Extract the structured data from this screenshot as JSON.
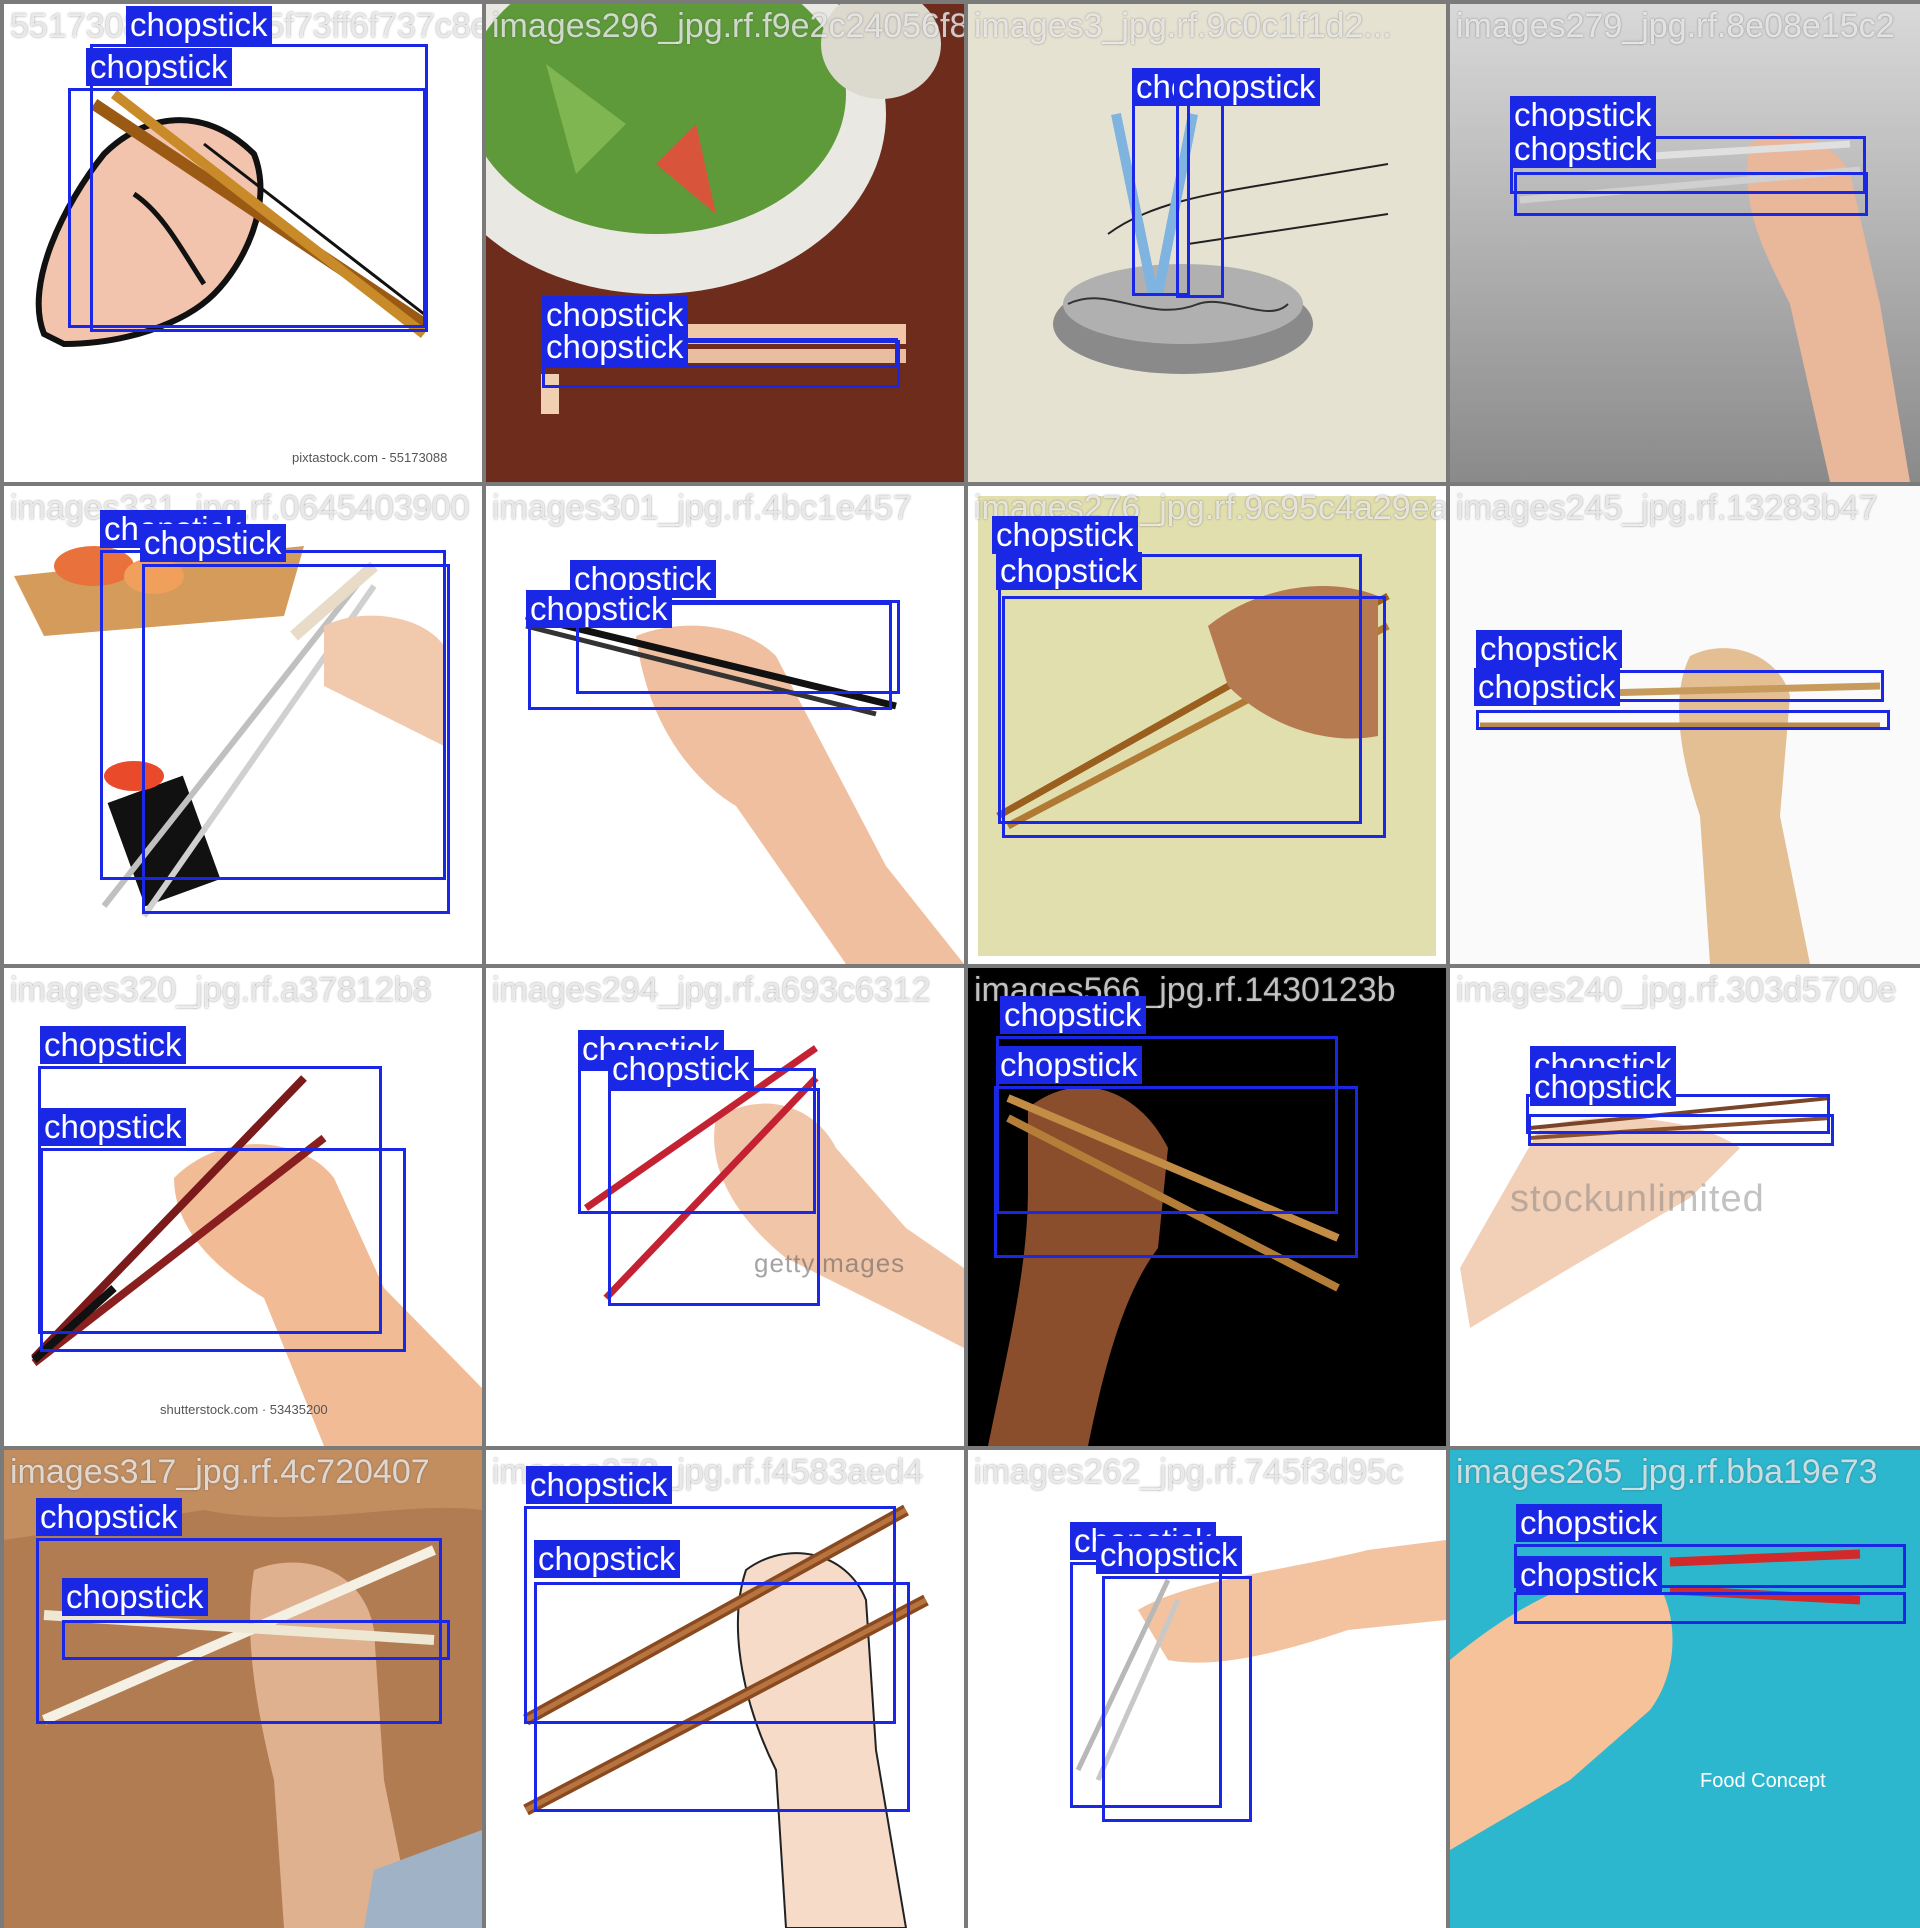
{
  "label": "chopstick",
  "colors": {
    "box": "#1a28e6",
    "label_bg": "#1a28e6",
    "label_fg": "#ffffff",
    "grid_bg": "#7a7a7a"
  },
  "tiles": [
    {
      "filename": "55173088_jpg.rf.5f73ff6f737c8e5aa4d3196e",
      "watermark": "pixtastock.com - 55173088"
    },
    {
      "filename": "images296_jpg.rf.f9e2c24056f8f9b6f76",
      "watermark": ""
    },
    {
      "filename": "images3_jpg.rf.9c0c1f1d2...",
      "watermark": ""
    },
    {
      "filename": "images279_jpg.rf.8e08e15c2",
      "watermark": ""
    },
    {
      "filename": "images331_jpg.rf.0645403900",
      "watermark": ""
    },
    {
      "filename": "images301_jpg.rf.4bc1e457",
      "watermark": ""
    },
    {
      "filename": "images276_jpg.rf.9c95c4a29eaf0",
      "watermark": ""
    },
    {
      "filename": "images245_jpg.rf.13283b47",
      "watermark": ""
    },
    {
      "filename": "images320_jpg.rf.a37812b8",
      "watermark": "shutterstock.com · 53435200"
    },
    {
      "filename": "images294_jpg.rf.a693c6312",
      "watermark": "gettyimages"
    },
    {
      "filename": "images566_jpg.rf.1430123b",
      "watermark": ""
    },
    {
      "filename": "images240_jpg.rf.303d5700e",
      "watermark": "stockunlimited"
    },
    {
      "filename": "images317_jpg.rf.4c720407",
      "watermark": ""
    },
    {
      "filename": "images278_jpg.rf.f4583aed4",
      "watermark": ""
    },
    {
      "filename": "images262_jpg.rf.745f3d95c",
      "watermark": ""
    },
    {
      "filename": "images265_jpg.rf.bba19e73",
      "watermark": "",
      "caption_title": "Food Concept"
    }
  ]
}
